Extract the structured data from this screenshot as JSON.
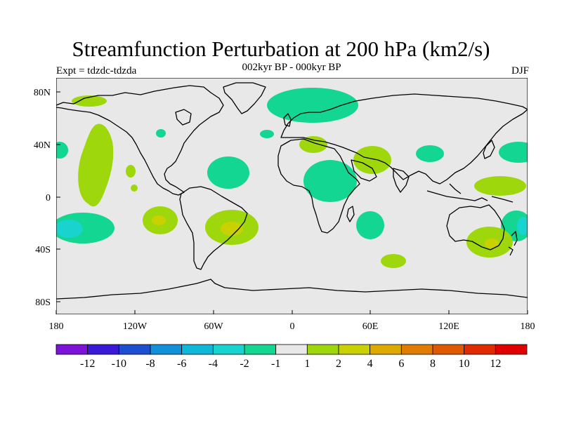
{
  "title": "Streamfunction Perturbation at 200 hPa (km2/s)",
  "subtitle": "002kyr BP - 000kyr BP",
  "experiment": "Expt = tdzdc-tdzda",
  "season": "DJF",
  "map": {
    "lat_ticks": [
      "80N",
      "40N",
      "0",
      "40S",
      "80S"
    ],
    "lon_ticks": [
      "180",
      "120W",
      "60W",
      "0",
      "60E",
      "120E",
      "180"
    ],
    "ocean_color": "#e8e8e8",
    "coast_color": "#000000"
  },
  "colorbar": {
    "labels": [
      "-12",
      "-10",
      "-8",
      "-6",
      "-4",
      "-2",
      "-1",
      "1",
      "2",
      "4",
      "6",
      "8",
      "10",
      "12"
    ],
    "colors": [
      "#7d12d8",
      "#3a1ad6",
      "#1f4fd1",
      "#1191d9",
      "#0fb8d8",
      "#19d3cf",
      "#12d691",
      "#e8e8e8",
      "#9ed80c",
      "#c9d200",
      "#dba900",
      "#e07d00",
      "#e05800",
      "#e02a00",
      "#e00000"
    ]
  },
  "anomaly_palette": {
    "neg1": "#12d691",
    "neg2": "#19d3cf",
    "pos1": "#9ed80c",
    "pos2": "#c9d200"
  }
}
